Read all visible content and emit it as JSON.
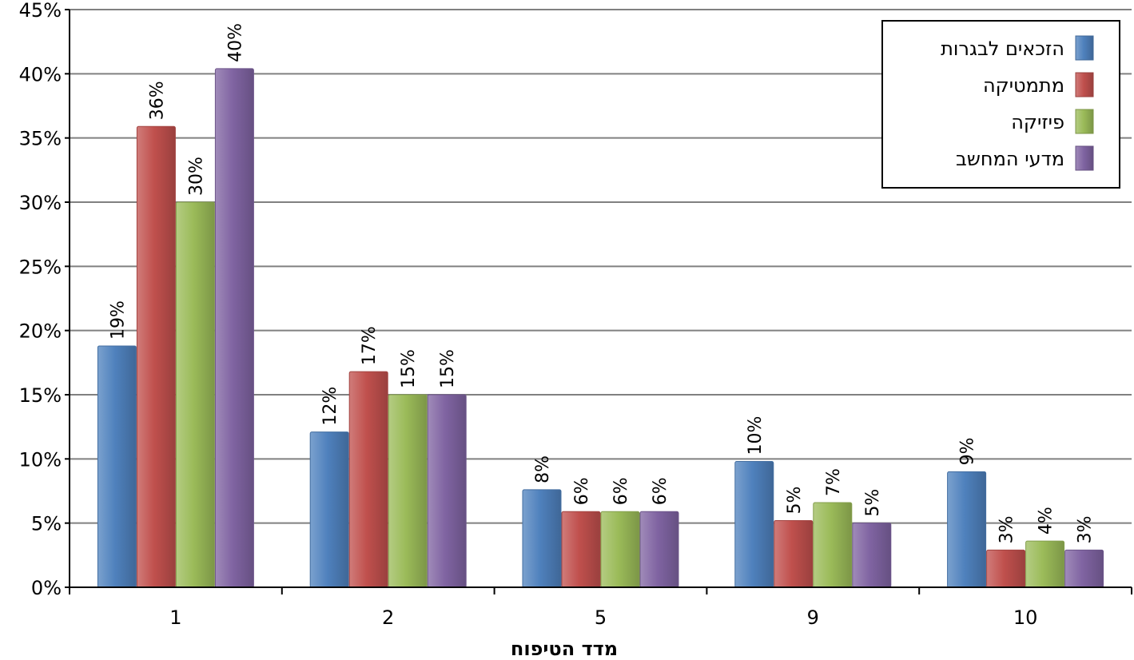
{
  "chart_data": {
    "type": "bar",
    "categories": [
      "1",
      "2",
      "5",
      "9",
      "10"
    ],
    "xlabel": "מדד הטיפוח",
    "ylabel": "",
    "ylim": [
      0,
      45
    ],
    "yticks": [
      "0%",
      "5%",
      "10%",
      "15%",
      "20%",
      "25%",
      "30%",
      "35%",
      "40%",
      "45%"
    ],
    "grid": true,
    "legend_position": "top-right",
    "series": [
      {
        "name": "הזכאים לבגרות",
        "color": "#4f81bd",
        "values": [
          18.8,
          12.1,
          7.6,
          9.8,
          9.0
        ],
        "labels": [
          "19%",
          "12%",
          "8%",
          "10%",
          "9%"
        ]
      },
      {
        "name": "מתמטיקה",
        "color": "#c0504d",
        "values": [
          35.9,
          16.8,
          5.9,
          5.2,
          2.9
        ],
        "labels": [
          "36%",
          "17%",
          "6%",
          "5%",
          "3%"
        ]
      },
      {
        "name": "פיזיקה",
        "color": "#9bbb59",
        "values": [
          30.0,
          15.0,
          5.9,
          6.6,
          3.6
        ],
        "labels": [
          "30%",
          "15%",
          "6%",
          "7%",
          "4%"
        ]
      },
      {
        "name": "מדעי המחשב",
        "color": "#8064a2",
        "values": [
          40.4,
          15.0,
          5.9,
          5.0,
          2.9
        ],
        "labels": [
          "40%",
          "15%",
          "6%",
          "5%",
          "3%"
        ]
      }
    ]
  }
}
